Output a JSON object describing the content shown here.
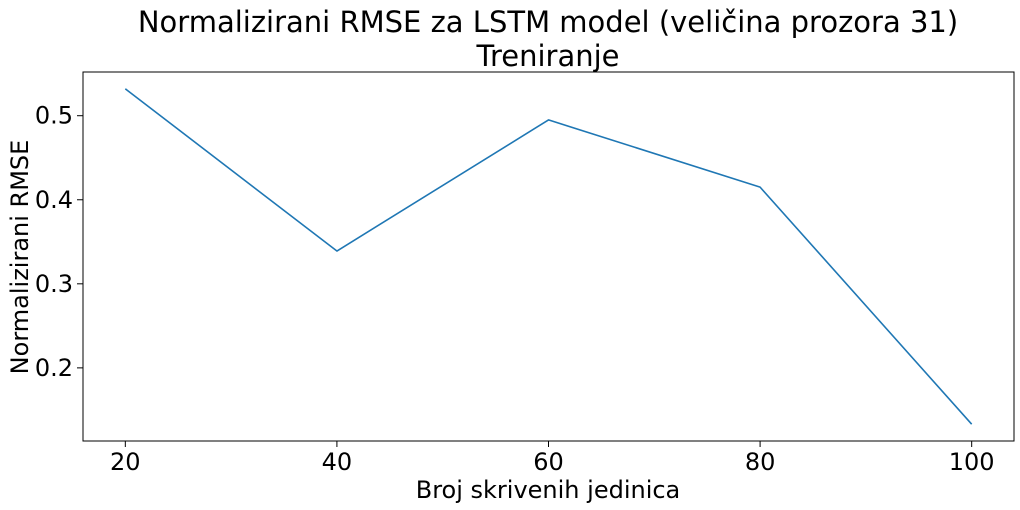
{
  "chart_data": {
    "type": "line",
    "title": "Normalizirani RMSE za LSTM model (veličina prozora 31)",
    "subtitle": "Treniranje",
    "xlabel": "Broj skrivenih jedinica",
    "ylabel": "Normalizirani RMSE",
    "x": [
      20,
      40,
      60,
      80,
      100
    ],
    "y": [
      0.532,
      0.339,
      0.495,
      0.415,
      0.133
    ],
    "xticks": [
      20,
      40,
      60,
      80,
      100
    ],
    "xtick_labels": [
      "20",
      "40",
      "60",
      "80",
      "100"
    ],
    "yticks": [
      0.2,
      0.3,
      0.4,
      0.5
    ],
    "ytick_labels": [
      "0.2",
      "0.3",
      "0.4",
      "0.5"
    ],
    "xlim": [
      16,
      104
    ],
    "ylim": [
      0.113,
      0.552
    ],
    "grid": false,
    "line_color": "#1f77b4"
  }
}
